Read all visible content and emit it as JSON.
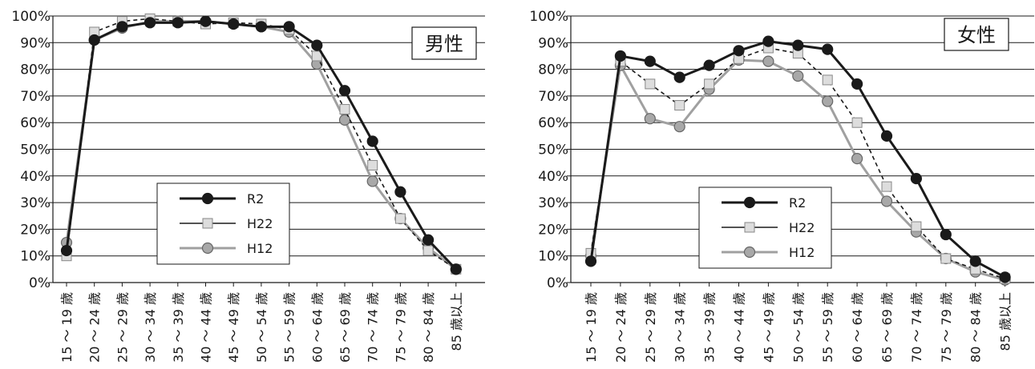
{
  "chart_data": [
    {
      "type": "line",
      "title": "男性",
      "categories": [
        "15 ～ 19 歳",
        "20 ～ 24 歳",
        "25 ～ 29 歳",
        "30 ～ 34 歳",
        "35 ～ 39 歳",
        "40 ～ 44 歳",
        "45 ～ 49 歳",
        "50 ～ 54 歳",
        "55 ～ 59 歳",
        "60 ～ 64 歳",
        "65 ～ 69 歳",
        "70 ～ 74 歳",
        "75 ～ 79 歳",
        "80 ～ 84 歳",
        "85 歳以上"
      ],
      "y_ticks": [
        "0%",
        "10%",
        "20%",
        "30%",
        "40%",
        "50%",
        "60%",
        "70%",
        "80%",
        "90%",
        "100%"
      ],
      "ylim": [
        0,
        100
      ],
      "grid": true,
      "legend_position": "lower-left",
      "series": [
        {
          "name": "R2",
          "values": [
            12,
            91,
            96,
            97.5,
            97.5,
            98,
            97,
            96,
            96,
            89,
            72,
            53,
            34,
            16,
            5
          ],
          "color": "#1a1a1a"
        },
        {
          "name": "H22",
          "values": [
            10,
            94,
            98,
            99,
            98,
            97,
            97.5,
            97,
            95,
            85,
            65,
            44,
            24,
            12,
            5
          ],
          "color": "#1a1a1a"
        },
        {
          "name": "H12",
          "values": [
            15,
            91,
            95.5,
            98,
            98,
            98,
            97,
            96,
            94,
            82,
            61,
            38,
            24,
            13,
            5
          ],
          "color": "#999999"
        }
      ]
    },
    {
      "type": "line",
      "title": "女性",
      "categories": [
        "15 ～ 19 歳",
        "20 ～ 24 歳",
        "25 ～ 29 歳",
        "30 ～ 34 歳",
        "35 ～ 39 歳",
        "40 ～ 44 歳",
        "45 ～ 49 歳",
        "50 ～ 54 歳",
        "55 ～ 59 歳",
        "60 ～ 64 歳",
        "65 ～ 69 歳",
        "70 ～ 74 歳",
        "75 ～ 79 歳",
        "80 ～ 84 歳",
        "85 歳以上"
      ],
      "y_ticks": [
        "0%",
        "10%",
        "20%",
        "30%",
        "40%",
        "50%",
        "60%",
        "70%",
        "80%",
        "90%",
        "100%"
      ],
      "ylim": [
        0,
        100
      ],
      "grid": true,
      "legend_position": "lower-left",
      "series": [
        {
          "name": "R2",
          "values": [
            8,
            85,
            83,
            77,
            81.5,
            87,
            90.5,
            89,
            87.5,
            74.5,
            55,
            39,
            18,
            8,
            2
          ],
          "color": "#1a1a1a"
        },
        {
          "name": "H22",
          "values": [
            11,
            83,
            74.5,
            66.5,
            74.5,
            84,
            88,
            86,
            76,
            60,
            36,
            21,
            9,
            5,
            1.5
          ],
          "color": "#1a1a1a"
        },
        {
          "name": "H12",
          "values": [
            10,
            81.5,
            61.5,
            58.5,
            72.5,
            83.5,
            83,
            77.5,
            68,
            46.5,
            30.5,
            19,
            9,
            4,
            1
          ],
          "color": "#999999"
        }
      ]
    }
  ]
}
